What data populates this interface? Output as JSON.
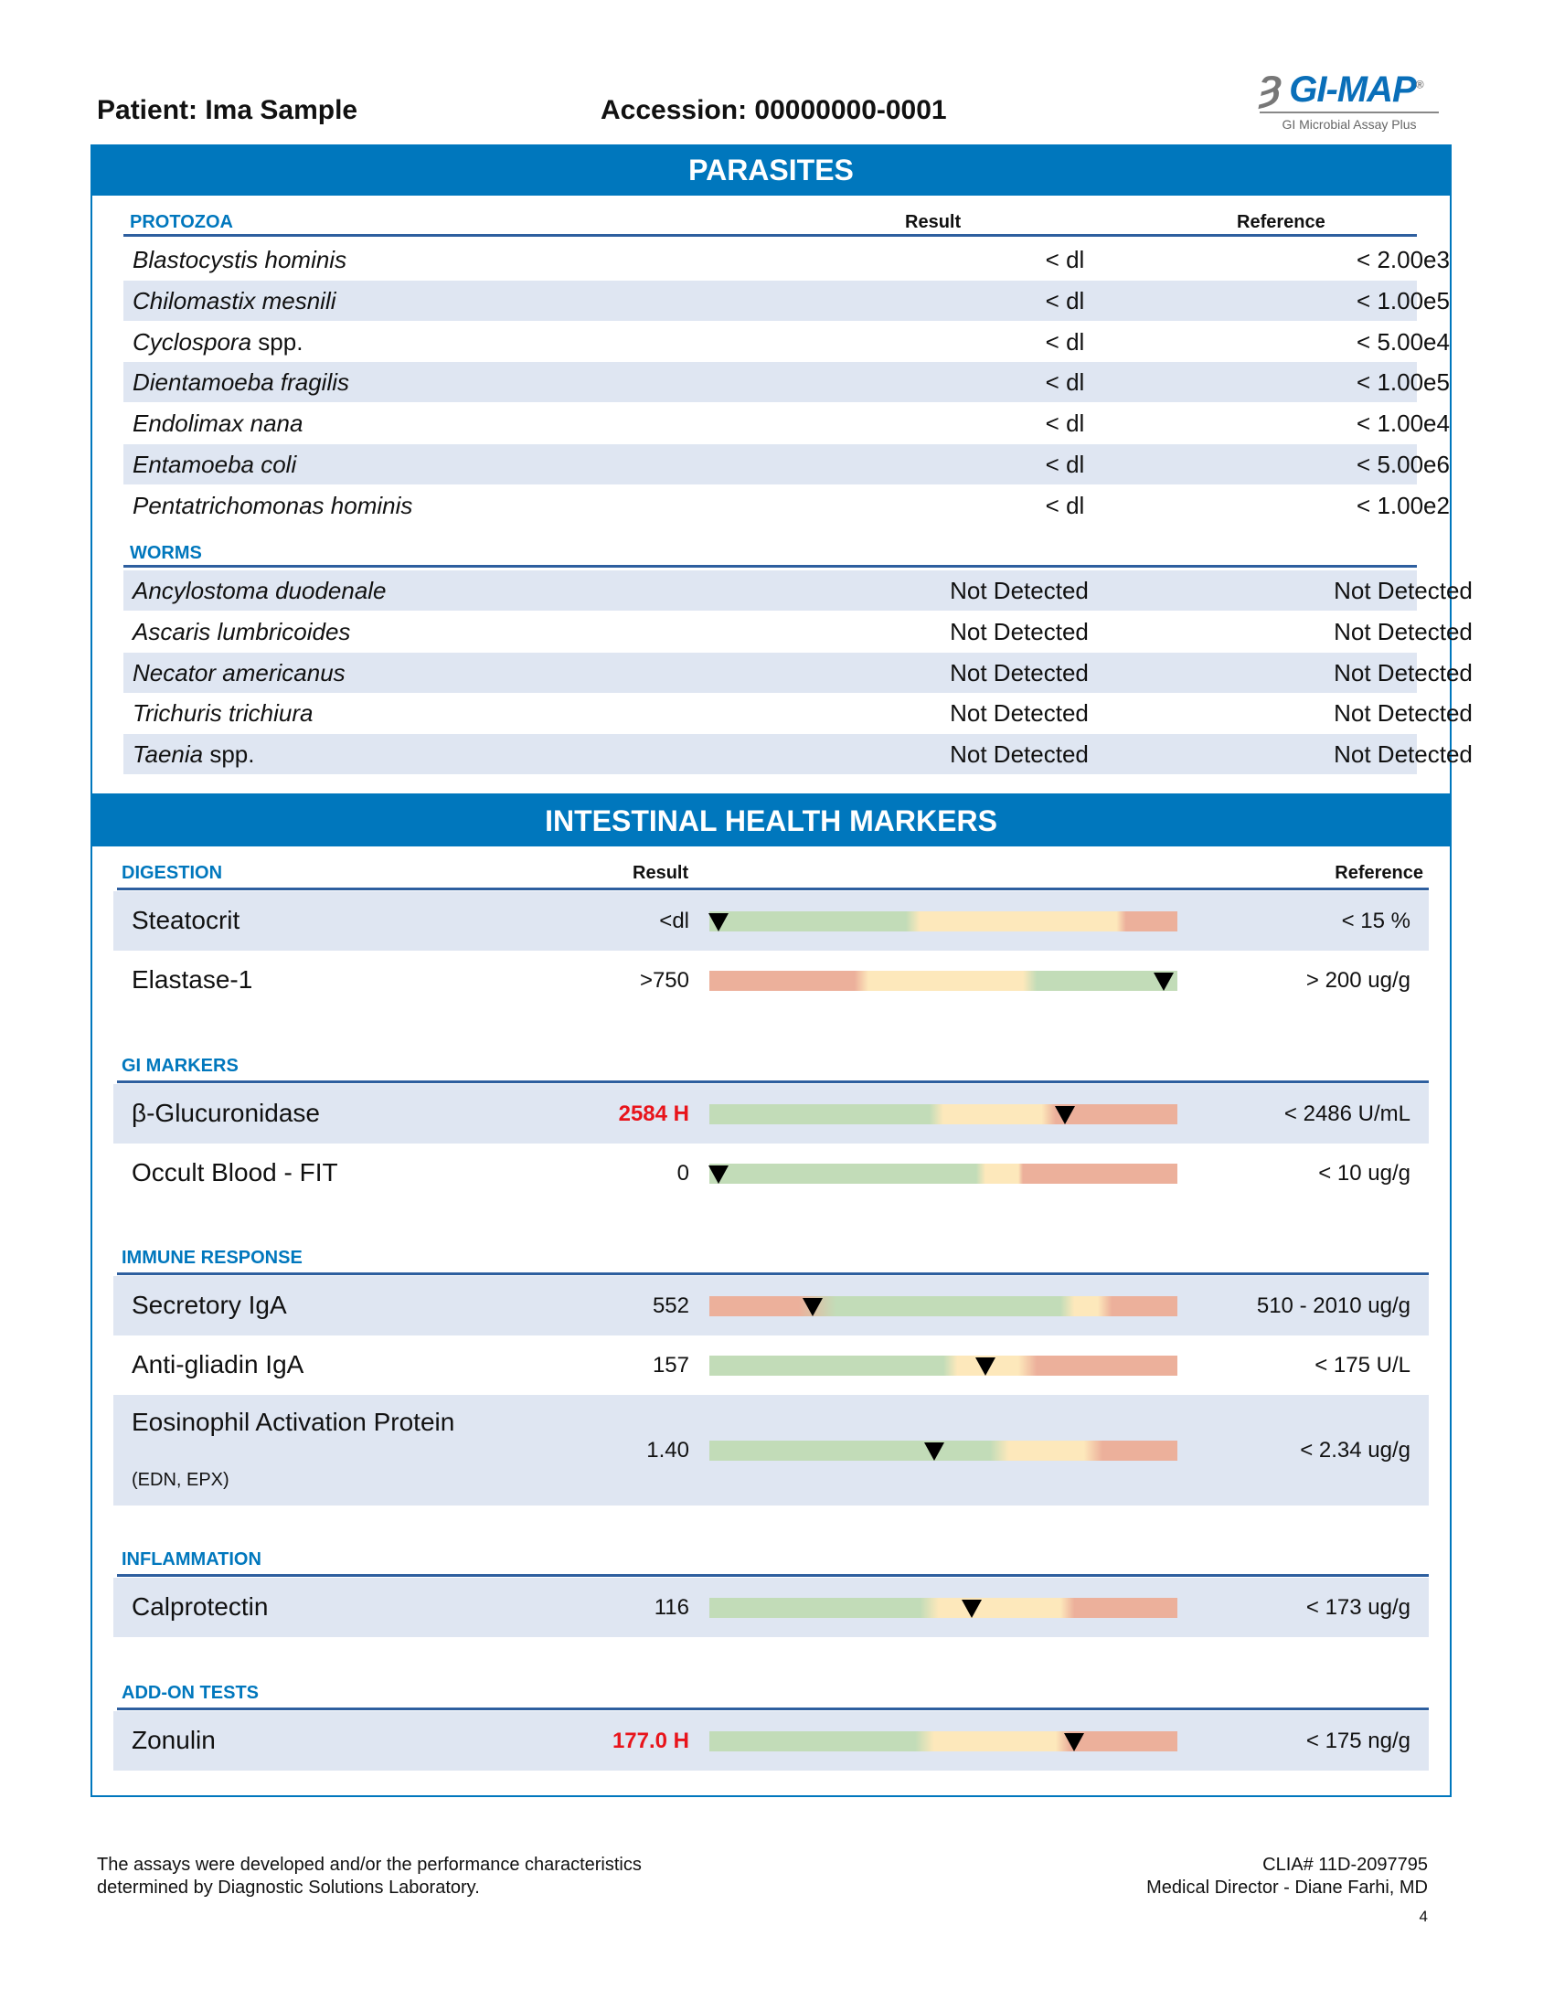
{
  "header": {
    "patient": "Patient: Ima Sample",
    "accession": "Accession: 00000000-0001"
  },
  "logo": {
    "brand": "GI-MAP",
    "registered": "®",
    "tagline": "GI Microbial Assay Plus"
  },
  "colors": {
    "brand_blue": "#0077bd",
    "row_shade": "#dfe6f2",
    "range_green": "#c2dcb8",
    "range_yellow": "#fde8bb",
    "range_red": "#ecb09b",
    "high_flag": "#e8141b"
  },
  "parasites": {
    "title": "PARASITES",
    "result_header": "Result",
    "reference_header": "Reference",
    "protozoa": {
      "label": "PROTOZOA",
      "rows": [
        {
          "name": "Blastocystis hominis",
          "suffix": "",
          "result": "< dl",
          "reference": "< 2.00e3"
        },
        {
          "name": "Chilomastix mesnili",
          "suffix": "",
          "result": "< dl",
          "reference": "< 1.00e5"
        },
        {
          "name": "Cyclospora",
          "suffix": " spp.",
          "result": "< dl",
          "reference": "< 5.00e4"
        },
        {
          "name": "Dientamoeba fragilis",
          "suffix": "",
          "result": "< dl",
          "reference": "< 1.00e5"
        },
        {
          "name": "Endolimax nana",
          "suffix": "",
          "result": "< dl",
          "reference": "< 1.00e4"
        },
        {
          "name": "Entamoeba coli",
          "suffix": "",
          "result": "< dl",
          "reference": "< 5.00e6"
        },
        {
          "name": "Pentatrichomonas hominis",
          "suffix": "",
          "result": "< dl",
          "reference": "< 1.00e2"
        }
      ]
    },
    "worms": {
      "label": "WORMS",
      "rows": [
        {
          "name": "Ancylostoma duodenale",
          "suffix": "",
          "result": "Not Detected",
          "reference": "Not Detected"
        },
        {
          "name": "Ascaris lumbricoides",
          "suffix": "",
          "result": "Not Detected",
          "reference": "Not Detected"
        },
        {
          "name": "Necator americanus",
          "suffix": "",
          "result": "Not Detected",
          "reference": "Not Detected"
        },
        {
          "name": "Trichuris trichiura",
          "suffix": "",
          "result": "Not Detected",
          "reference": "Not Detected"
        },
        {
          "name": "Taenia",
          "suffix": " spp.",
          "result": "Not Detected",
          "reference": "Not Detected"
        }
      ]
    }
  },
  "intestinal": {
    "title": "INTESTINAL HEALTH MARKERS",
    "result_header": "Result",
    "reference_header": "Reference",
    "sections": [
      {
        "label": "DIGESTION",
        "rows": [
          {
            "name": "Steatocrit",
            "result": "<dl",
            "high": false,
            "reference": "< 15 %",
            "marker": 0.02,
            "ranges": [
              [
                "green",
                0,
                0.42
              ],
              [
                "yellow",
                0.45,
                0.87
              ],
              [
                "red",
                0.89,
                1
              ]
            ]
          },
          {
            "name": "Elastase-1",
            "result": ">750",
            "high": false,
            "reference": "> 200 ug/g",
            "marker": 0.97,
            "ranges": [
              [
                "red",
                0,
                0.31
              ],
              [
                "yellow",
                0.34,
                0.67
              ],
              [
                "green",
                0.7,
                1
              ]
            ]
          }
        ]
      },
      {
        "label": "GI MARKERS",
        "rows": [
          {
            "name": "β-Glucuronidase",
            "result": "2584 H",
            "high": true,
            "reference": "< 2486 U/mL",
            "marker": 0.76,
            "ranges": [
              [
                "green",
                0,
                0.47
              ],
              [
                "yellow",
                0.5,
                0.71
              ],
              [
                "red",
                0.74,
                1
              ]
            ]
          },
          {
            "name": "Occult Blood - FIT",
            "result": "0",
            "high": false,
            "reference": "< 10 ug/g",
            "marker": 0.02,
            "ranges": [
              [
                "green",
                0,
                0.57
              ],
              [
                "yellow",
                0.59,
                0.66
              ],
              [
                "red",
                0.67,
                1
              ]
            ]
          }
        ]
      },
      {
        "label": "IMMUNE RESPONSE",
        "rows": [
          {
            "name": "Secretory IgA",
            "result": "552",
            "high": false,
            "reference": "510 - 2010 ug/g",
            "marker": 0.22,
            "ranges": [
              [
                "red",
                0,
                0.19
              ],
              [
                "green",
                0.27,
                0.75
              ],
              [
                "yellow",
                0.78,
                0.83
              ],
              [
                "red",
                0.86,
                1
              ]
            ]
          },
          {
            "name": "Anti-gliadin IgA",
            "result": "157",
            "high": false,
            "reference": "< 175 U/L",
            "marker": 0.59,
            "ranges": [
              [
                "green",
                0,
                0.5
              ],
              [
                "yellow",
                0.53,
                0.66
              ],
              [
                "red",
                0.7,
                1
              ]
            ]
          },
          {
            "name": "Eosinophil Activation Protein",
            "subtitle": "(EDN, EPX)",
            "result": "1.40",
            "high": false,
            "reference": "< 2.34 ug/g",
            "marker": 0.48,
            "ranges": [
              [
                "green",
                0,
                0.6
              ],
              [
                "yellow",
                0.64,
                0.8
              ],
              [
                "red",
                0.84,
                1
              ]
            ]
          }
        ]
      },
      {
        "label": "INFLAMMATION",
        "rows": [
          {
            "name": "Calprotectin",
            "result": "116",
            "high": false,
            "reference": "< 173 ug/g",
            "marker": 0.56,
            "ranges": [
              [
                "green",
                0,
                0.45
              ],
              [
                "yellow",
                0.49,
                0.75
              ],
              [
                "red",
                0.78,
                1
              ]
            ]
          }
        ]
      },
      {
        "label": "ADD-ON TESTS",
        "rows": [
          {
            "name": "Zonulin",
            "result": "177.0 H",
            "high": true,
            "reference": "< 175 ng/g",
            "marker": 0.78,
            "ranges": [
              [
                "green",
                0,
                0.44
              ],
              [
                "yellow",
                0.48,
                0.74
              ],
              [
                "red",
                0.77,
                1
              ]
            ]
          }
        ]
      }
    ]
  },
  "footer": {
    "disclaimer_line1": "The assays were developed and/or the performance characteristics",
    "disclaimer_line2": "determined by Diagnostic Solutions Laboratory.",
    "clia": "CLIA# 11D-2097795",
    "director": "Medical Director - Diane Farhi, MD",
    "page_number": "4"
  }
}
